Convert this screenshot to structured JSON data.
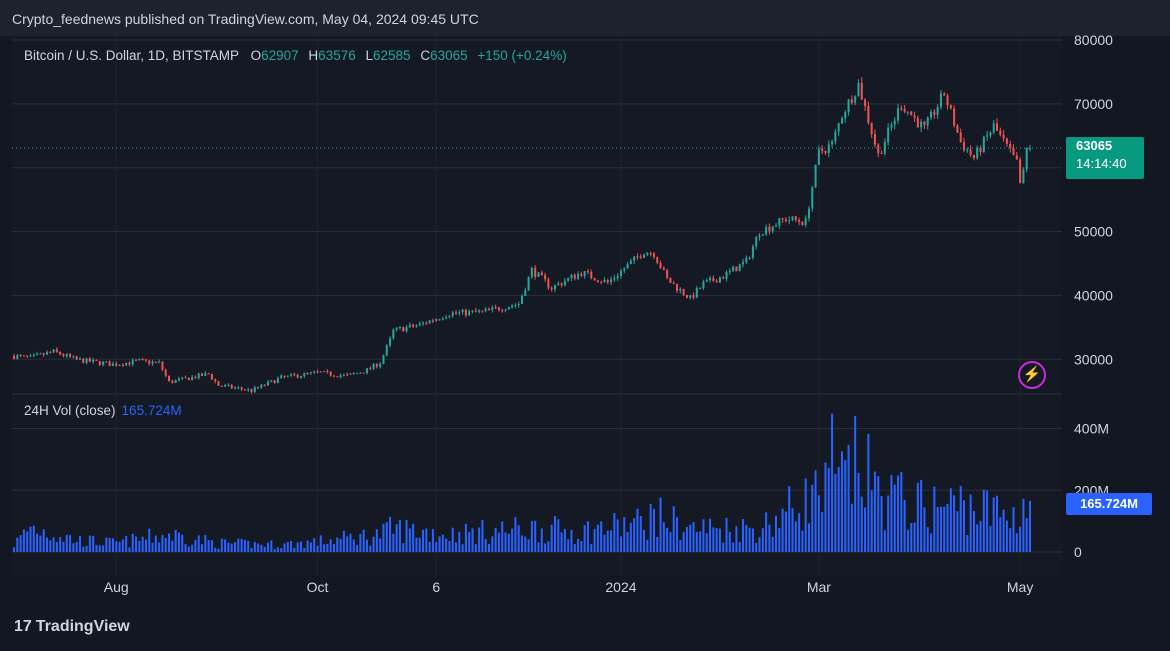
{
  "header": {
    "published": "Crypto_feednews published on TradingView.com, May 04, 2024 09:45 UTC"
  },
  "legend": {
    "symbol": "Bitcoin / U.S. Dollar, 1D, BITSTAMP",
    "o_label": "O",
    "o_value": "62907",
    "h_label": "H",
    "h_value": "63576",
    "l_label": "L",
    "l_value": "62585",
    "c_label": "C",
    "c_value": "63065",
    "change": "+150 (+0.24%)"
  },
  "volume_legend": {
    "label": "24H Vol (close)",
    "value": "165.724M"
  },
  "price_tag": {
    "price": "63065",
    "countdown": "14:14:40"
  },
  "volume_tag": "165.724M",
  "branding": {
    "logo_mark": "17",
    "name": "TradingView"
  },
  "colors": {
    "up": "#26a69a",
    "down": "#ef5350",
    "volume": "#2962ff",
    "background": "#131722",
    "grid": "#2a2e39"
  },
  "chart_data": {
    "type": "candlestick",
    "price_axis": {
      "ticks": [
        30000,
        40000,
        50000,
        60000,
        70000,
        80000
      ],
      "tick_labels": [
        "30000",
        "40000",
        "50000",
        "",
        "70000",
        "80000"
      ],
      "ylim": [
        25500,
        80000
      ]
    },
    "volume_axis": {
      "ticks": [
        0,
        200,
        400
      ],
      "tick_labels": [
        "0",
        "200M",
        "400M"
      ],
      "ylim": [
        0,
        460
      ],
      "unit": "M"
    },
    "x_tick_labels": [
      "Aug",
      "Oct",
      "6",
      "2024",
      "Mar",
      "May"
    ],
    "close_path": [
      [
        "2023-07-01",
        30500
      ],
      [
        "2023-07-06",
        30200
      ],
      [
        "2023-07-13",
        31200
      ],
      [
        "2023-07-20",
        29900
      ],
      [
        "2023-07-31",
        29200
      ],
      [
        "2023-08-08",
        29700
      ],
      [
        "2023-08-14",
        29400
      ],
      [
        "2023-08-17",
        26400
      ],
      [
        "2023-08-29",
        27700
      ],
      [
        "2023-09-01",
        25900
      ],
      [
        "2023-09-11",
        25100
      ],
      [
        "2023-09-20",
        27100
      ],
      [
        "2023-10-01",
        27900
      ],
      [
        "2023-10-10",
        27400
      ],
      [
        "2023-10-16",
        28300
      ],
      [
        "2023-10-20",
        29500
      ],
      [
        "2023-10-23",
        33000
      ],
      [
        "2023-10-24",
        34500
      ],
      [
        "2023-11-01",
        35400
      ],
      [
        "2023-11-10",
        37200
      ],
      [
        "2023-11-20",
        37400
      ],
      [
        "2023-12-01",
        38700
      ],
      [
        "2023-12-05",
        44000
      ],
      [
        "2023-12-11",
        41200
      ],
      [
        "2023-12-20",
        43600
      ],
      [
        "2023-12-28",
        42000
      ],
      [
        "2024-01-08",
        46900
      ],
      [
        "2024-01-11",
        46600
      ],
      [
        "2024-01-15",
        42500
      ],
      [
        "2024-01-22",
        39500
      ],
      [
        "2024-01-26",
        41800
      ],
      [
        "2024-02-01",
        43000
      ],
      [
        "2024-02-08",
        45300
      ],
      [
        "2024-02-12",
        50000
      ],
      [
        "2024-02-20",
        52000
      ],
      [
        "2024-02-26",
        51500
      ],
      [
        "2024-02-28",
        57000
      ],
      [
        "2024-03-01",
        62400
      ],
      [
        "2024-03-05",
        63700
      ],
      [
        "2024-03-08",
        68300
      ],
      [
        "2024-03-13",
        73100
      ],
      [
        "2024-03-19",
        62000
      ],
      [
        "2024-03-26",
        70000
      ],
      [
        "2024-04-02",
        66000
      ],
      [
        "2024-04-08",
        71600
      ],
      [
        "2024-04-13",
        64000
      ],
      [
        "2024-04-17",
        61500
      ],
      [
        "2024-04-23",
        66500
      ],
      [
        "2024-04-30",
        60700
      ],
      [
        "2024-05-01",
        57500
      ],
      [
        "2024-05-02",
        59100
      ],
      [
        "2024-05-03",
        62900
      ],
      [
        "2024-05-04",
        63065
      ]
    ],
    "volume_path_M": [
      [
        "2023-07-01",
        25
      ],
      [
        "2023-07-06",
        85
      ],
      [
        "2023-07-20",
        40
      ],
      [
        "2023-08-01",
        30
      ],
      [
        "2023-08-17",
        60
      ],
      [
        "2023-09-01",
        30
      ],
      [
        "2023-09-20",
        25
      ],
      [
        "2023-10-01",
        35
      ],
      [
        "2023-10-20",
        60
      ],
      [
        "2023-10-24",
        80
      ],
      [
        "2023-11-10",
        60
      ],
      [
        "2023-12-05",
        80
      ],
      [
        "2023-12-20",
        70
      ],
      [
        "2024-01-08",
        100
      ],
      [
        "2024-01-11",
        125
      ],
      [
        "2024-01-22",
        80
      ],
      [
        "2024-02-12",
        80
      ],
      [
        "2024-02-28",
        190
      ],
      [
        "2024-03-05",
        200
      ],
      [
        "2024-03-13",
        300
      ],
      [
        "2024-03-19",
        200
      ],
      [
        "2024-04-02",
        150
      ],
      [
        "2024-04-13",
        160
      ],
      [
        "2024-04-30",
        120
      ],
      [
        "2024-05-01",
        160
      ],
      [
        "2024-05-04",
        165.724
      ]
    ]
  }
}
